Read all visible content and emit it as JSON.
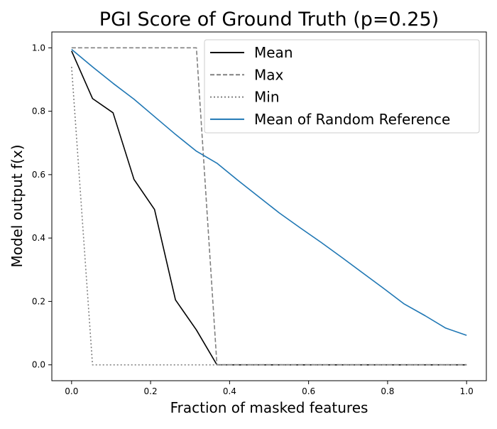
{
  "chart_data": {
    "type": "line",
    "title": "PGI Score of Ground Truth (p=0.25)",
    "xlabel": "Fraction of masked features",
    "ylabel": "Model output f(x)",
    "xlim": [
      -0.05,
      1.05
    ],
    "ylim": [
      -0.05,
      1.05
    ],
    "xticks": [
      "0.0",
      "0.2",
      "0.4",
      "0.6",
      "0.8",
      "1.0"
    ],
    "yticks": [
      "0.0",
      "0.2",
      "0.4",
      "0.6",
      "0.8",
      "1.0"
    ],
    "grid": false,
    "legend_position": "top-right",
    "series": [
      {
        "name": "Mean",
        "color": "#000000",
        "style": "solid",
        "x": [
          0.0,
          0.053,
          0.105,
          0.158,
          0.21,
          0.263,
          0.316,
          0.368,
          0.421,
          0.474,
          0.526,
          0.579,
          0.632,
          0.684,
          0.737,
          0.789,
          0.842,
          0.895,
          0.947,
          1.0
        ],
        "y": [
          0.99,
          0.84,
          0.795,
          0.585,
          0.49,
          0.205,
          0.11,
          0.0,
          0.0,
          0.0,
          0.0,
          0.0,
          0.0,
          0.0,
          0.0,
          0.0,
          0.0,
          0.0,
          0.0,
          0.0
        ]
      },
      {
        "name": "Max",
        "color": "#808080",
        "style": "dashed",
        "x": [
          0.0,
          0.316,
          0.368,
          1.0
        ],
        "y": [
          1.0,
          1.0,
          0.0,
          0.0
        ]
      },
      {
        "name": "Min",
        "color": "#808080",
        "style": "dotted",
        "x": [
          0.0,
          0.053,
          1.0
        ],
        "y": [
          0.94,
          0.0,
          0.0
        ]
      },
      {
        "name": "Mean of Random Reference",
        "color": "#1f77b4",
        "style": "solid",
        "x": [
          0.0,
          0.053,
          0.105,
          0.158,
          0.21,
          0.263,
          0.316,
          0.368,
          0.421,
          0.474,
          0.526,
          0.579,
          0.632,
          0.684,
          0.737,
          0.789,
          0.842,
          0.895,
          0.947,
          1.0
        ],
        "y": [
          0.995,
          0.94,
          0.888,
          0.838,
          0.783,
          0.727,
          0.674,
          0.636,
          0.582,
          0.53,
          0.479,
          0.432,
          0.386,
          0.339,
          0.29,
          0.242,
          0.192,
          0.155,
          0.116,
          0.093
        ]
      }
    ]
  }
}
